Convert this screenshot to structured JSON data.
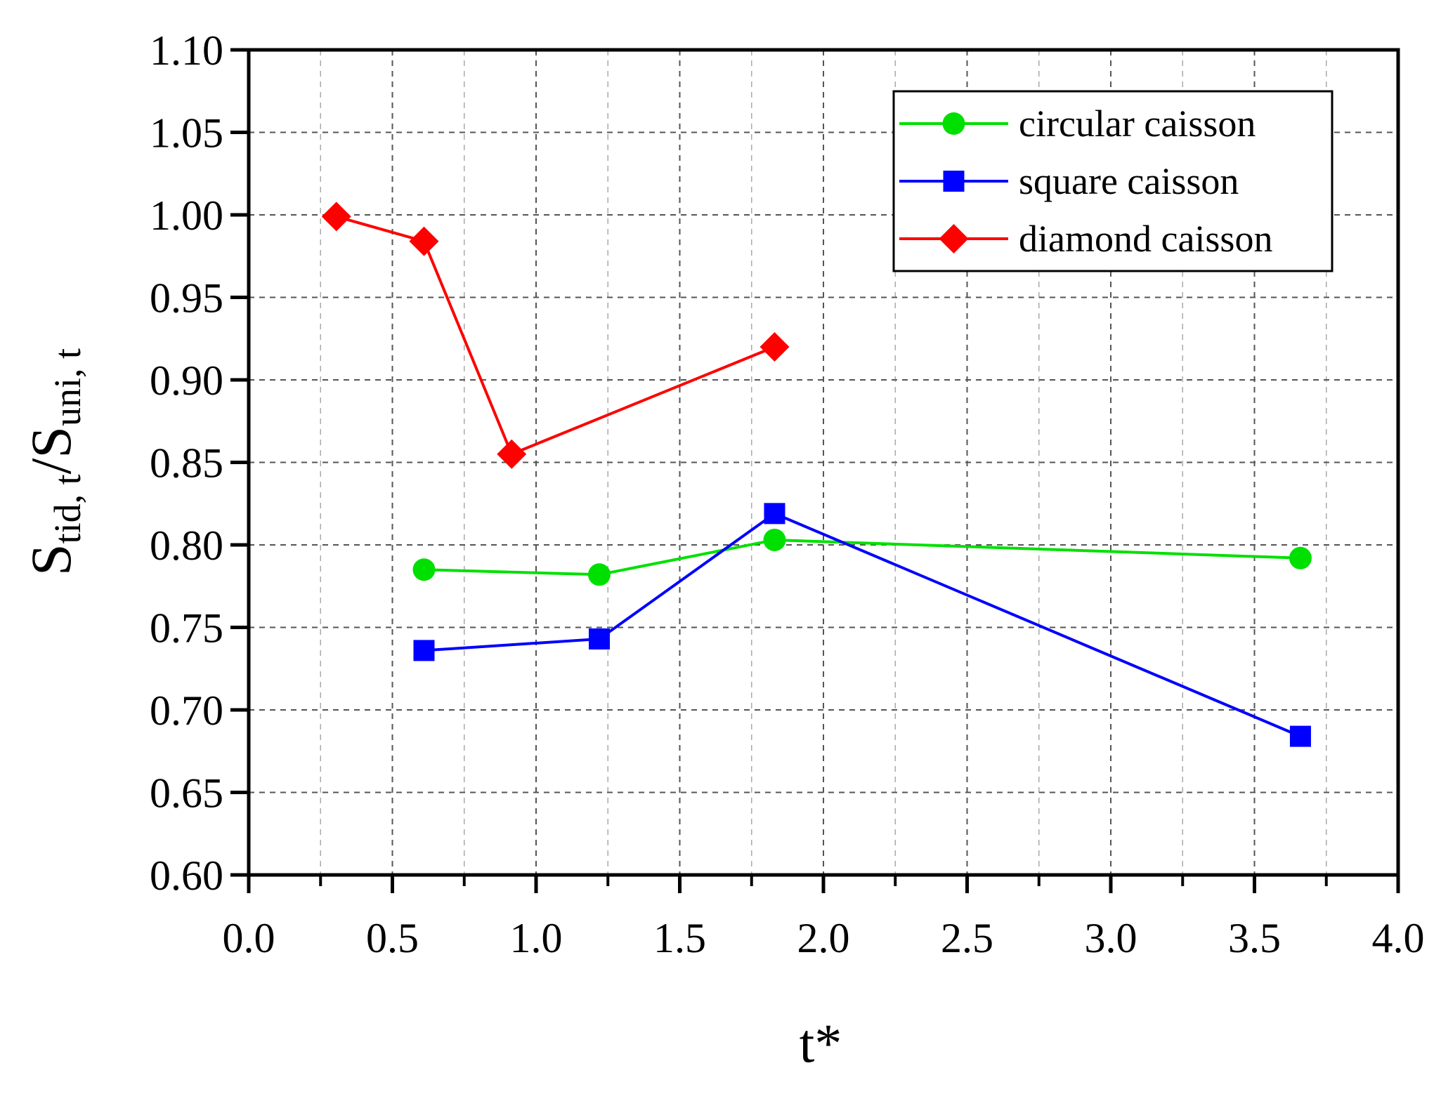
{
  "chart_data": {
    "type": "line",
    "title": "",
    "xlabel": "t*",
    "ylabel": {
      "main1": "S",
      "sub1": "tid, t",
      "slash": "/",
      "main2": "S",
      "sub2": "uni, t"
    },
    "xlim": [
      0.0,
      4.0
    ],
    "ylim": [
      0.6,
      1.1
    ],
    "x_ticks": [
      "0.0",
      "0.5",
      "1.0",
      "1.5",
      "2.0",
      "2.5",
      "3.0",
      "3.5",
      "4.0"
    ],
    "y_ticks": [
      "0.60",
      "0.65",
      "0.70",
      "0.75",
      "0.80",
      "0.85",
      "0.90",
      "0.95",
      "1.00",
      "1.05",
      "1.10"
    ],
    "grid": true,
    "legend_position": "top-right",
    "series": [
      {
        "name": "circular caisson",
        "color": "#00e000",
        "marker": "circle",
        "x": [
          0.61,
          1.22,
          1.83,
          3.66
        ],
        "y": [
          0.785,
          0.782,
          0.803,
          0.792
        ]
      },
      {
        "name": "square caisson",
        "color": "#0000ff",
        "marker": "square",
        "x": [
          0.61,
          1.22,
          1.83,
          3.66
        ],
        "y": [
          0.736,
          0.743,
          0.819,
          0.684
        ]
      },
      {
        "name": "diamond caisson",
        "color": "#ff0000",
        "marker": "diamond",
        "x": [
          0.305,
          0.61,
          0.915,
          1.83
        ],
        "y": [
          0.999,
          0.984,
          0.855,
          0.92
        ]
      }
    ]
  }
}
